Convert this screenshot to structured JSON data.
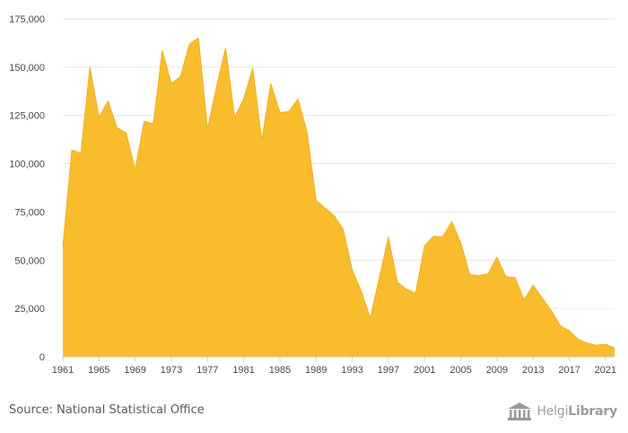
{
  "chart_data": {
    "type": "area",
    "x": [
      1961,
      1962,
      1963,
      1964,
      1965,
      1966,
      1967,
      1968,
      1969,
      1970,
      1971,
      1972,
      1973,
      1974,
      1975,
      1976,
      1977,
      1978,
      1979,
      1980,
      1981,
      1982,
      1983,
      1984,
      1985,
      1986,
      1987,
      1988,
      1989,
      1990,
      1991,
      1992,
      1993,
      1994,
      1995,
      1996,
      1997,
      1998,
      1999,
      2000,
      2001,
      2002,
      2003,
      2004,
      2005,
      2006,
      2007,
      2008,
      2009,
      2010,
      2011,
      2012,
      2013,
      2014,
      2015,
      2016,
      2017,
      2018,
      2019,
      2020,
      2021,
      2022
    ],
    "values": [
      57000,
      107000,
      105500,
      150000,
      124000,
      132500,
      118500,
      116000,
      97000,
      122000,
      120500,
      158500,
      141500,
      145000,
      162000,
      165000,
      118000,
      140000,
      160000,
      124000,
      133500,
      149500,
      112000,
      141500,
      126500,
      127000,
      133500,
      116500,
      81000,
      77000,
      73000,
      66000,
      45000,
      34000,
      20000,
      41000,
      62000,
      38500,
      35000,
      33000,
      57500,
      62500,
      62000,
      70000,
      59000,
      42500,
      42000,
      43000,
      51500,
      41500,
      41000,
      29500,
      37000,
      30500,
      24000,
      16000,
      13500,
      9000,
      7000,
      6000,
      6500,
      4500
    ],
    "ylim": [
      0,
      175000
    ],
    "yticks": [
      "0",
      "25,000",
      "50,000",
      "75,000",
      "100,000",
      "125,000",
      "150,000",
      "175,000"
    ],
    "xticks": [
      "1961",
      "1965",
      "1969",
      "1973",
      "1977",
      "1981",
      "1985",
      "1989",
      "1993",
      "1997",
      "2001",
      "2005",
      "2009",
      "2013",
      "2017",
      "2021"
    ],
    "grid": true,
    "fill_color": "#f8bc2c",
    "line_color": "#eeb023"
  },
  "footer": {
    "source": "Source: National Statistical Office",
    "brand_light": "Helgi",
    "brand_bold": "Library",
    "brand_icon": "library-building-icon"
  }
}
